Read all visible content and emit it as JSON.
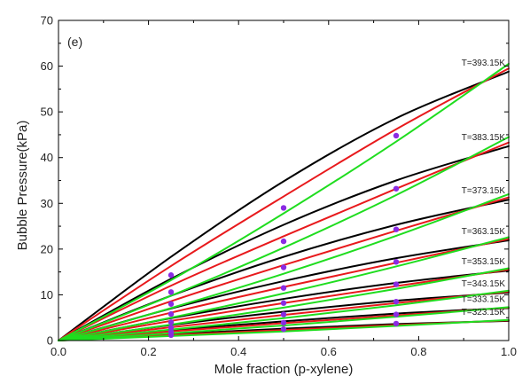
{
  "chart_data": {
    "type": "line",
    "panel_label": "(e)",
    "xlabel": "Mole fraction (p-xylene)",
    "ylabel": "Bubble Pressure(kPa)",
    "xlim": [
      0.0,
      1.0
    ],
    "ylim": [
      0,
      70
    ],
    "x_ticks": [
      "0.0",
      "0.2",
      "0.4",
      "0.6",
      "0.8",
      "1.0"
    ],
    "y_ticks": [
      "0",
      "10",
      "20",
      "30",
      "40",
      "50",
      "60",
      "70"
    ],
    "colors": {
      "black_model": "#000000",
      "red_model": "#e8191c",
      "green_model": "#1fdd1f",
      "experimental": "#8a2be2"
    },
    "isotherms": [
      {
        "label": "T=393.15K",
        "black": {
          "x": [
            0,
            0.25,
            0.5,
            0.75,
            1.0
          ],
          "y": [
            0,
            18.3,
            34.8,
            48.6,
            58.8
          ]
        },
        "red": {
          "x": [
            0,
            0.25,
            0.5,
            0.75,
            1.0
          ],
          "y": [
            0,
            16.3,
            31.5,
            46.2,
            59.5
          ]
        },
        "green": {
          "x": [
            0,
            0.25,
            0.5,
            0.75,
            1.0
          ],
          "y": [
            0,
            13.2,
            27.8,
            43.5,
            60.5
          ]
        },
        "points": {
          "x": [
            0.25,
            0.5,
            0.75
          ],
          "y": [
            14.3,
            29.0,
            44.8
          ]
        }
      },
      {
        "label": "T=383.15K",
        "black": {
          "x": [
            0,
            0.25,
            0.5,
            0.75,
            1.0
          ],
          "y": [
            0,
            13.5,
            25.3,
            35.0,
            42.5
          ]
        },
        "red": {
          "x": [
            0,
            0.25,
            0.5,
            0.75,
            1.0
          ],
          "y": [
            0,
            12.0,
            22.8,
            33.2,
            43.3
          ]
        },
        "green": {
          "x": [
            0,
            0.25,
            0.5,
            0.75,
            1.0
          ],
          "y": [
            0,
            9.8,
            20.3,
            31.8,
            44.5
          ]
        },
        "points": {
          "x": [
            0.25,
            0.5,
            0.75
          ],
          "y": [
            10.6,
            21.7,
            33.2
          ]
        }
      },
      {
        "label": "T=373.15K",
        "black": {
          "x": [
            0,
            0.25,
            0.5,
            0.75,
            1.0
          ],
          "y": [
            0,
            9.8,
            18.3,
            25.3,
            30.8
          ]
        },
        "red": {
          "x": [
            0,
            0.25,
            0.5,
            0.75,
            1.0
          ],
          "y": [
            0,
            8.6,
            16.5,
            24.0,
            31.3
          ]
        },
        "green": {
          "x": [
            0,
            0.25,
            0.5,
            0.75,
            1.0
          ],
          "y": [
            0,
            7.1,
            14.6,
            22.9,
            32.0
          ]
        },
        "points": {
          "x": [
            0.25,
            0.5,
            0.75
          ],
          "y": [
            8.0,
            16.0,
            24.3
          ]
        }
      },
      {
        "label": "T=363.15K",
        "black": {
          "x": [
            0,
            0.25,
            0.5,
            0.75,
            1.0
          ],
          "y": [
            0,
            7.0,
            13.0,
            18.0,
            21.9
          ]
        },
        "red": {
          "x": [
            0,
            0.25,
            0.5,
            0.75,
            1.0
          ],
          "y": [
            0,
            6.1,
            11.7,
            17.0,
            22.2
          ]
        },
        "green": {
          "x": [
            0,
            0.25,
            0.5,
            0.75,
            1.0
          ],
          "y": [
            0,
            5.0,
            10.3,
            16.2,
            22.6
          ]
        },
        "points": {
          "x": [
            0.25,
            0.5,
            0.75
          ],
          "y": [
            5.8,
            11.5,
            17.2
          ]
        }
      },
      {
        "label": "T=353.15K",
        "black": {
          "x": [
            0,
            0.25,
            0.5,
            0.75,
            1.0
          ],
          "y": [
            0,
            4.9,
            9.1,
            12.6,
            15.3
          ]
        },
        "red": {
          "x": [
            0,
            0.25,
            0.5,
            0.75,
            1.0
          ],
          "y": [
            0,
            4.3,
            8.2,
            11.9,
            15.5
          ]
        },
        "green": {
          "x": [
            0,
            0.25,
            0.5,
            0.75,
            1.0
          ],
          "y": [
            0,
            3.5,
            7.2,
            11.3,
            15.8
          ]
        },
        "points": {
          "x": [
            0.25,
            0.5,
            0.75
          ],
          "y": [
            4.0,
            8.2,
            12.3
          ]
        }
      },
      {
        "label": "T=343.15K",
        "black": {
          "x": [
            0,
            0.25,
            0.5,
            0.75,
            1.0
          ],
          "y": [
            0,
            3.4,
            6.3,
            8.7,
            10.5
          ]
        },
        "red": {
          "x": [
            0,
            0.25,
            0.5,
            0.75,
            1.0
          ],
          "y": [
            0,
            2.9,
            5.6,
            8.2,
            10.7
          ]
        },
        "green": {
          "x": [
            0,
            0.25,
            0.5,
            0.75,
            1.0
          ],
          "y": [
            0,
            2.4,
            4.9,
            7.7,
            10.9
          ]
        },
        "points": {
          "x": [
            0.25,
            0.5,
            0.75
          ],
          "y": [
            2.8,
            5.7,
            8.5
          ]
        }
      },
      {
        "label": "T=333.15K",
        "black": {
          "x": [
            0,
            0.25,
            0.5,
            0.75,
            1.0
          ],
          "y": [
            0,
            2.3,
            4.2,
            5.9,
            7.1
          ]
        },
        "red": {
          "x": [
            0,
            0.25,
            0.5,
            0.75,
            1.0
          ],
          "y": [
            0,
            2.0,
            3.8,
            5.5,
            7.2
          ]
        },
        "green": {
          "x": [
            0,
            0.25,
            0.5,
            0.75,
            1.0
          ],
          "y": [
            0,
            1.6,
            3.3,
            5.2,
            7.3
          ]
        },
        "points": {
          "x": [
            0.25,
            0.5,
            0.75
          ],
          "y": [
            1.9,
            3.9,
            5.7
          ]
        }
      },
      {
        "label": "T=323.15K",
        "black": {
          "x": [
            0,
            0.25,
            0.5,
            0.75,
            1.0
          ],
          "y": [
            0,
            1.4,
            2.6,
            3.6,
            4.3
          ]
        },
        "red": {
          "x": [
            0,
            0.25,
            0.5,
            0.75,
            1.0
          ],
          "y": [
            0,
            1.2,
            2.3,
            3.4,
            4.4
          ]
        },
        "green": {
          "x": [
            0,
            0.25,
            0.5,
            0.75,
            1.0
          ],
          "y": [
            0,
            1.0,
            2.0,
            3.2,
            4.5
          ]
        },
        "points": {
          "x": [
            0.25,
            0.5,
            0.75
          ],
          "y": [
            1.2,
            2.5,
            3.7
          ]
        }
      }
    ]
  }
}
